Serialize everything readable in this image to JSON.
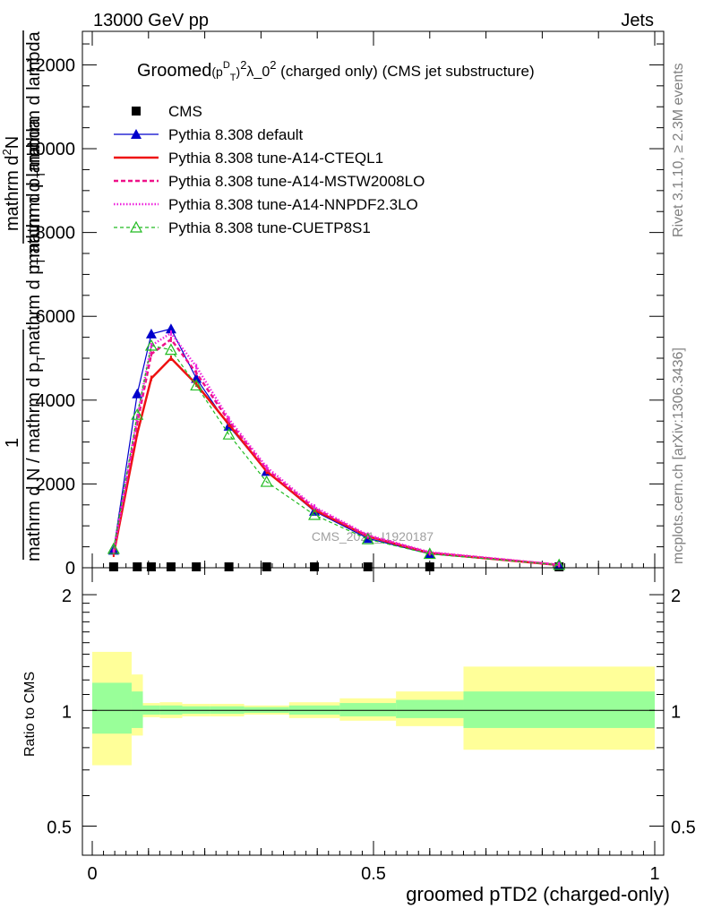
{
  "header": {
    "left": "13000 GeV pp",
    "right": "Jets"
  },
  "side_labels": {
    "rivet": "Rivet 3.1.10, ≥ 2.3M events",
    "mcplots": "mcplots.cern.ch [arXiv:1306.3436]"
  },
  "watermark": "CMS_2021_I1920187",
  "chart_data": [
    {
      "type": "line",
      "title_parts": {
        "pre": "Groomed",
        "math": "(p",
        "sup1": "D",
        "sub1": "T",
        "post": ")",
        "sup2": "2",
        "lambda": "λ_0",
        "sup3": "2",
        "tail": "(charged only) (CMS jet substructure)"
      },
      "ylabel_lines": [
        "mathrm d²N",
        "mathrm d p_T mathrm d lambda",
        "1",
        "mathrm d N / mathrm d p_Tmathrm d p_T mathrm d lambda"
      ],
      "ylabel_left": "mathrm d N / mathrm d p",
      "ylabel_sub": "T",
      "ylabel_mid": "mathrm d p",
      "ylabel_sub2": "T",
      "ylabel_tail": "mathrm d lambda",
      "ylabel_num": "mathrm d",
      "ylabel_num_sup": "2",
      "ylabel_num_tail": "N",
      "ylabel_den": "mathrm d p",
      "ylabel_den_sub": "T",
      "ylabel_den_tail": "mathrm d lambda",
      "ylabel_one": "1",
      "xlim": [
        0,
        1
      ],
      "ylim": [
        0,
        12800
      ],
      "yticks": [
        0,
        2000,
        4000,
        6000,
        8000,
        10000,
        12000
      ],
      "x": [
        0.038,
        0.08,
        0.105,
        0.14,
        0.185,
        0.243,
        0.31,
        0.395,
        0.49,
        0.6,
        0.83
      ],
      "series": [
        {
          "name": "CMS",
          "color": "#000000",
          "marker": "square",
          "values": [
            10,
            10,
            10,
            10,
            10,
            10,
            10,
            10,
            10,
            10,
            10
          ]
        },
        {
          "name": "Pythia 8.308 default",
          "color": "#0000cc",
          "marker": "triangle-filled",
          "dash": "",
          "values": [
            420,
            4150,
            5580,
            5700,
            4520,
            3380,
            2300,
            1350,
            700,
            330,
            70
          ]
        },
        {
          "name": "Pythia 8.308 tune-A14-CTEQL1",
          "color": "#ee1111",
          "marker": "tick",
          "dash": "",
          "width": 2.5,
          "values": [
            320,
            3200,
            4520,
            5000,
            4380,
            3420,
            2300,
            1380,
            750,
            350,
            65
          ]
        },
        {
          "name": "Pythia 8.308 tune-A14-MSTW2008LO",
          "color": "#ee1188",
          "marker": "tick",
          "dash": "5,3",
          "width": 2.5,
          "values": [
            380,
            3450,
            5100,
            5450,
            4650,
            3500,
            2350,
            1420,
            760,
            360,
            70
          ]
        },
        {
          "name": "Pythia 8.308 tune-A14-NNPDF2.3LO",
          "color": "#ee22dd",
          "marker": "tick",
          "dash": "1.5,2",
          "width": 2.5,
          "values": [
            400,
            3600,
            5300,
            5600,
            4800,
            3550,
            2400,
            1450,
            780,
            370,
            72
          ]
        },
        {
          "name": "Pythia 8.308 tune-CUETP8S1",
          "color": "#22bb22",
          "marker": "triangle-open",
          "dash": "4,3",
          "values": [
            450,
            3650,
            5300,
            5200,
            4350,
            3180,
            2050,
            1260,
            680,
            330,
            68
          ]
        }
      ]
    },
    {
      "type": "area",
      "ylabel": "Ratio to CMS",
      "xlabel": "groomed pTD2 (charged-only)",
      "xlim": [
        0,
        1
      ],
      "ylim": [
        0.42,
        2.35
      ],
      "yscale": "log",
      "yticks": [
        0.5,
        1,
        2
      ],
      "ytick_labels": [
        "0.5",
        "1",
        "2"
      ],
      "xticks": [
        0,
        0.5,
        1
      ],
      "xtick_labels": [
        "0",
        "0.5",
        "1"
      ],
      "reference": 1,
      "band_colors": {
        "inner": "#99ff99",
        "outer": "#ffff99"
      },
      "bins": [
        {
          "lo": 0.0,
          "hi": 0.07,
          "inner": [
            0.87,
            1.18
          ],
          "outer": [
            0.72,
            1.42
          ]
        },
        {
          "lo": 0.07,
          "hi": 0.09,
          "inner": [
            0.9,
            1.12
          ],
          "outer": [
            0.86,
            1.24
          ]
        },
        {
          "lo": 0.09,
          "hi": 0.12,
          "inner": [
            0.975,
            1.03
          ],
          "outer": [
            0.96,
            1.045
          ]
        },
        {
          "lo": 0.12,
          "hi": 0.16,
          "inner": [
            0.975,
            1.03
          ],
          "outer": [
            0.955,
            1.05
          ]
        },
        {
          "lo": 0.16,
          "hi": 0.21,
          "inner": [
            0.98,
            1.025
          ],
          "outer": [
            0.965,
            1.04
          ]
        },
        {
          "lo": 0.21,
          "hi": 0.27,
          "inner": [
            0.98,
            1.025
          ],
          "outer": [
            0.965,
            1.04
          ]
        },
        {
          "lo": 0.27,
          "hi": 0.35,
          "inner": [
            0.985,
            1.02
          ],
          "outer": [
            0.975,
            1.03
          ]
        },
        {
          "lo": 0.35,
          "hi": 0.44,
          "inner": [
            0.975,
            1.03
          ],
          "outer": [
            0.955,
            1.05
          ]
        },
        {
          "lo": 0.44,
          "hi": 0.54,
          "inner": [
            0.965,
            1.045
          ],
          "outer": [
            0.94,
            1.075
          ]
        },
        {
          "lo": 0.54,
          "hi": 0.66,
          "inner": [
            0.955,
            1.065
          ],
          "outer": [
            0.91,
            1.12
          ]
        },
        {
          "lo": 0.66,
          "hi": 1.0,
          "inner": [
            0.9,
            1.12
          ],
          "outer": [
            0.79,
            1.3
          ]
        }
      ]
    }
  ]
}
